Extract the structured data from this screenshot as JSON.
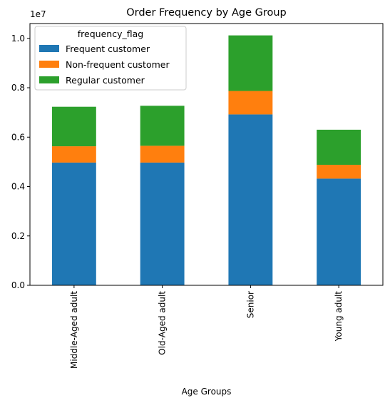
{
  "chart_data": {
    "type": "bar",
    "stacked": true,
    "title": "Order Frequency by Age Group",
    "xlabel": "Age Groups",
    "ylabel": "",
    "y_offset_label": "1e7",
    "categories": [
      "Middle-Aged adult",
      "Old-Aged adult",
      "Senior",
      "Young adult"
    ],
    "yticks": [
      "0.0",
      "0.2",
      "0.4",
      "0.6",
      "0.8",
      "1.0"
    ],
    "ytick_values": [
      0.0,
      0.2,
      0.4,
      0.6,
      0.8,
      1.0
    ],
    "ylim": [
      0,
      1.06
    ],
    "y_multiplier": 10000000,
    "grid": false,
    "legend": {
      "title": "frequency_flag",
      "placement": "top-left"
    },
    "series": [
      {
        "name": "Frequent customer",
        "color": "#1f77b4",
        "values": [
          0.497,
          0.497,
          0.692,
          0.432
        ]
      },
      {
        "name": "Non-frequent customer",
        "color": "#ff7f0e",
        "values": [
          0.066,
          0.068,
          0.095,
          0.056
        ]
      },
      {
        "name": "Regular customer",
        "color": "#2ca02c",
        "values": [
          0.16,
          0.162,
          0.225,
          0.142
        ]
      }
    ]
  }
}
